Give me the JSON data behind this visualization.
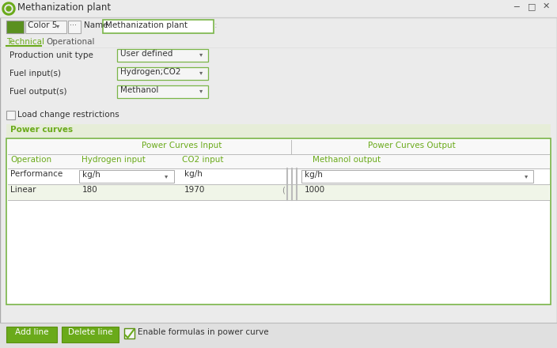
{
  "title": "Methanization plant",
  "bg_color": "#ebebeb",
  "green_color": "#6aaa1a",
  "green_tab": "#6aaa1a",
  "green_btn": "#6aaa1a",
  "table_border": "#7ab548",
  "color_swatch": "#5a9020",
  "color_label": "Color 5",
  "name_label": "Name:",
  "name_value": "Methanization plant",
  "tab_technical": "Technical",
  "tab_operational": "Operational",
  "prod_unit_label": "Production unit type",
  "prod_unit_value": "User defined",
  "fuel_input_label": "Fuel input(s)",
  "fuel_input_value": "Hydrogen;CO2",
  "fuel_output_label": "Fuel output(s)",
  "fuel_output_value": "Methanol",
  "load_change_label": "Load change restrictions",
  "power_curves_label": "Power curves",
  "col_header_input": "Power Curves Input",
  "col_header_output": "Power Curves Output",
  "col_sub_operation": "Operation",
  "col_sub_hydrogen": "Hydrogen input",
  "col_sub_co2": "CO2 input",
  "col_sub_methanol": "Methanol output",
  "row_performance": [
    "Performance",
    "kg/h",
    "kg/h",
    "kg/h"
  ],
  "row_linear": [
    "Linear",
    "180",
    "1970",
    "1000"
  ],
  "btn_add": "Add line",
  "btn_delete": "Delete line",
  "checkbox_label": "Enable formulas in power curve"
}
